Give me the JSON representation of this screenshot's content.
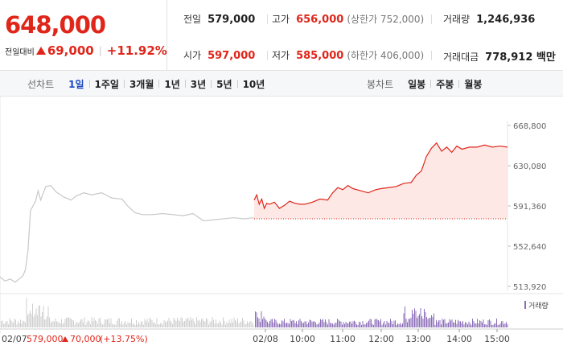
{
  "quote": {
    "price": "648,000",
    "change_label": "전일대비",
    "change_amount": "69,000",
    "change_rate": "+11.92%",
    "stats": {
      "prev_close": {
        "label": "전일",
        "value": "579,000"
      },
      "high": {
        "label": "고가",
        "value": "656,000",
        "sub": "(상한가 752,000)"
      },
      "volume": {
        "label": "거래량",
        "value": "1,246,936"
      },
      "open": {
        "label": "시가",
        "value": "597,000"
      },
      "low": {
        "label": "저가",
        "value": "585,000",
        "sub": "(하한가 406,000)"
      },
      "trade_value": {
        "label": "거래대금",
        "value": "778,912 백만"
      }
    }
  },
  "toolbar": {
    "line_label": "선차트",
    "line_periods": [
      "1일",
      "1주일",
      "3개월",
      "1년",
      "3년",
      "5년",
      "10년"
    ],
    "active_period": "1일",
    "candle_label": "봉차트",
    "candle_periods": [
      "일봉",
      "주봉",
      "월봉"
    ]
  },
  "colors": {
    "up": "#e0261a",
    "down": "#1a5fd0",
    "active_tab": "#1a48c4",
    "prev_day_line": "#c8c8c8",
    "volume_prev": "#cfcfcf",
    "volume_today": "#8d6fb8"
  },
  "chart_data": {
    "type": "line",
    "price_axis": {
      "ticks": [
        "668,800",
        "630,080",
        "591,360",
        "552,640",
        "513,920"
      ],
      "values": [
        668800,
        630080,
        591360,
        552640,
        513920
      ]
    },
    "baseline": 579000,
    "time_ticks": [
      "02/08",
      "10:00",
      "11:00",
      "12:00",
      "13:00",
      "14:00",
      "15:00"
    ],
    "prev_day_series": {
      "date": "02/07",
      "x": [
        0,
        0.02,
        0.04,
        0.06,
        0.08,
        0.09,
        0.1,
        0.11,
        0.12,
        0.14,
        0.15,
        0.16,
        0.18,
        0.2,
        0.22,
        0.25,
        0.28,
        0.3,
        0.33,
        0.36,
        0.4,
        0.44,
        0.48,
        0.5,
        0.53,
        0.56,
        0.6,
        0.64,
        0.68,
        0.72,
        0.76,
        0.8,
        0.84,
        0.88,
        0.92,
        0.96,
        1
      ],
      "values": [
        523000,
        519000,
        521000,
        518000,
        522000,
        524000,
        530000,
        548000,
        587000,
        596000,
        606000,
        597000,
        610000,
        611000,
        605000,
        600000,
        597000,
        601000,
        604000,
        602000,
        604000,
        599000,
        598000,
        592000,
        585000,
        583000,
        583000,
        584000,
        583000,
        582000,
        584000,
        577000,
        578000,
        579000,
        580000,
        579000,
        580000
      ]
    },
    "today_series": {
      "x": [
        0,
        0.01,
        0.02,
        0.03,
        0.04,
        0.05,
        0.06,
        0.08,
        0.1,
        0.12,
        0.14,
        0.16,
        0.18,
        0.2,
        0.23,
        0.26,
        0.29,
        0.31,
        0.33,
        0.35,
        0.37,
        0.39,
        0.42,
        0.45,
        0.48,
        0.5,
        0.53,
        0.56,
        0.59,
        0.62,
        0.64,
        0.66,
        0.68,
        0.7,
        0.72,
        0.74,
        0.76,
        0.78,
        0.8,
        0.82,
        0.85,
        0.88,
        0.91,
        0.94,
        0.97,
        1
      ],
      "values": [
        597000,
        602000,
        593000,
        598000,
        589000,
        594000,
        593000,
        595000,
        589000,
        592000,
        596000,
        594000,
        593000,
        593000,
        595000,
        598000,
        597000,
        604000,
        609000,
        607000,
        611000,
        608000,
        606000,
        604000,
        607000,
        608000,
        609000,
        610000,
        613000,
        614000,
        621000,
        625000,
        639000,
        647000,
        652000,
        644000,
        648000,
        643000,
        649000,
        646000,
        648000,
        648000,
        650000,
        648000,
        649000,
        648000
      ]
    },
    "volume_label": "거래량",
    "footer": {
      "prev_date": "02/07",
      "prev_close": "579,000",
      "change": "70,000",
      "change_rate": "(+13.75%)"
    }
  }
}
